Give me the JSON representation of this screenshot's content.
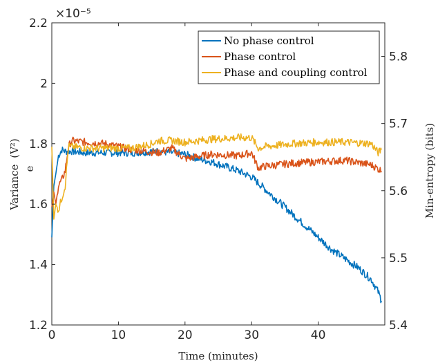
{
  "chart_data": {
    "type": "line",
    "xlabel": "Time (minutes)",
    "ylabel_left": "Variance",
    "ylabel_left_expr": "(V²)",
    "ylabel_left_stray": "e",
    "ylabel_right": "Min-entropy (bits)",
    "left_scale_exponent": "×10⁻⁵",
    "xlim": [
      0,
      50
    ],
    "ylim_left": [
      1.2,
      2.2
    ],
    "ylim_right": [
      5.4,
      5.85
    ],
    "xticks": [
      "0",
      "10",
      "20",
      "30",
      "40"
    ],
    "xtick_values": [
      0,
      10,
      20,
      30,
      40
    ],
    "yticks_left": [
      "1.2",
      "1.4",
      "1.6",
      "1.8",
      "2",
      "2.2"
    ],
    "ytick_values_left": [
      1.2,
      1.4,
      1.6,
      1.8,
      2.0,
      2.2
    ],
    "yticks_right": [
      "5.4",
      "5.5",
      "5.6",
      "5.7",
      "5.8"
    ],
    "ytick_values_right": [
      5.4,
      5.5,
      5.6,
      5.7,
      5.8
    ],
    "legend_position": "top-right",
    "grid": false,
    "series": [
      {
        "name": "No phase control",
        "color": "#0072BD",
        "x": [
          0,
          0.3,
          0.6,
          1,
          1.5,
          2,
          3,
          5,
          8,
          12,
          16,
          20,
          22,
          24,
          26,
          28,
          30,
          32,
          34,
          36,
          38,
          40,
          42,
          44,
          46,
          48,
          49,
          49.5
        ],
        "y": [
          1.49,
          1.66,
          1.7,
          1.76,
          1.78,
          1.775,
          1.775,
          1.77,
          1.77,
          1.77,
          1.775,
          1.765,
          1.75,
          1.74,
          1.725,
          1.71,
          1.69,
          1.65,
          1.61,
          1.57,
          1.53,
          1.49,
          1.45,
          1.42,
          1.39,
          1.35,
          1.31,
          1.28
        ]
      },
      {
        "name": "Phase control",
        "color": "#D95319",
        "x": [
          0,
          0.3,
          0.6,
          1,
          1.5,
          2,
          2.5,
          3,
          5,
          8,
          12,
          16,
          18,
          20,
          24,
          28,
          30,
          31,
          32,
          34,
          36,
          40,
          44,
          48,
          49.5
        ],
        "y": [
          1.59,
          1.64,
          1.6,
          1.66,
          1.68,
          1.71,
          1.79,
          1.81,
          1.805,
          1.8,
          1.78,
          1.77,
          1.785,
          1.75,
          1.765,
          1.76,
          1.77,
          1.72,
          1.725,
          1.73,
          1.735,
          1.74,
          1.745,
          1.73,
          1.71
        ]
      },
      {
        "name": "Phase and coupling control",
        "color": "#EDB120",
        "x": [
          0,
          0.3,
          0.6,
          1,
          1.5,
          2,
          2.5,
          3,
          5,
          8,
          12,
          15,
          16,
          18,
          20,
          24,
          28,
          30,
          31,
          32,
          36,
          40,
          44,
          48,
          49,
          49.5
        ],
        "y": [
          1.79,
          1.55,
          1.6,
          1.58,
          1.62,
          1.66,
          1.79,
          1.79,
          1.785,
          1.785,
          1.785,
          1.8,
          1.81,
          1.81,
          1.805,
          1.815,
          1.82,
          1.82,
          1.785,
          1.79,
          1.8,
          1.805,
          1.805,
          1.8,
          1.77,
          1.78
        ]
      }
    ]
  }
}
